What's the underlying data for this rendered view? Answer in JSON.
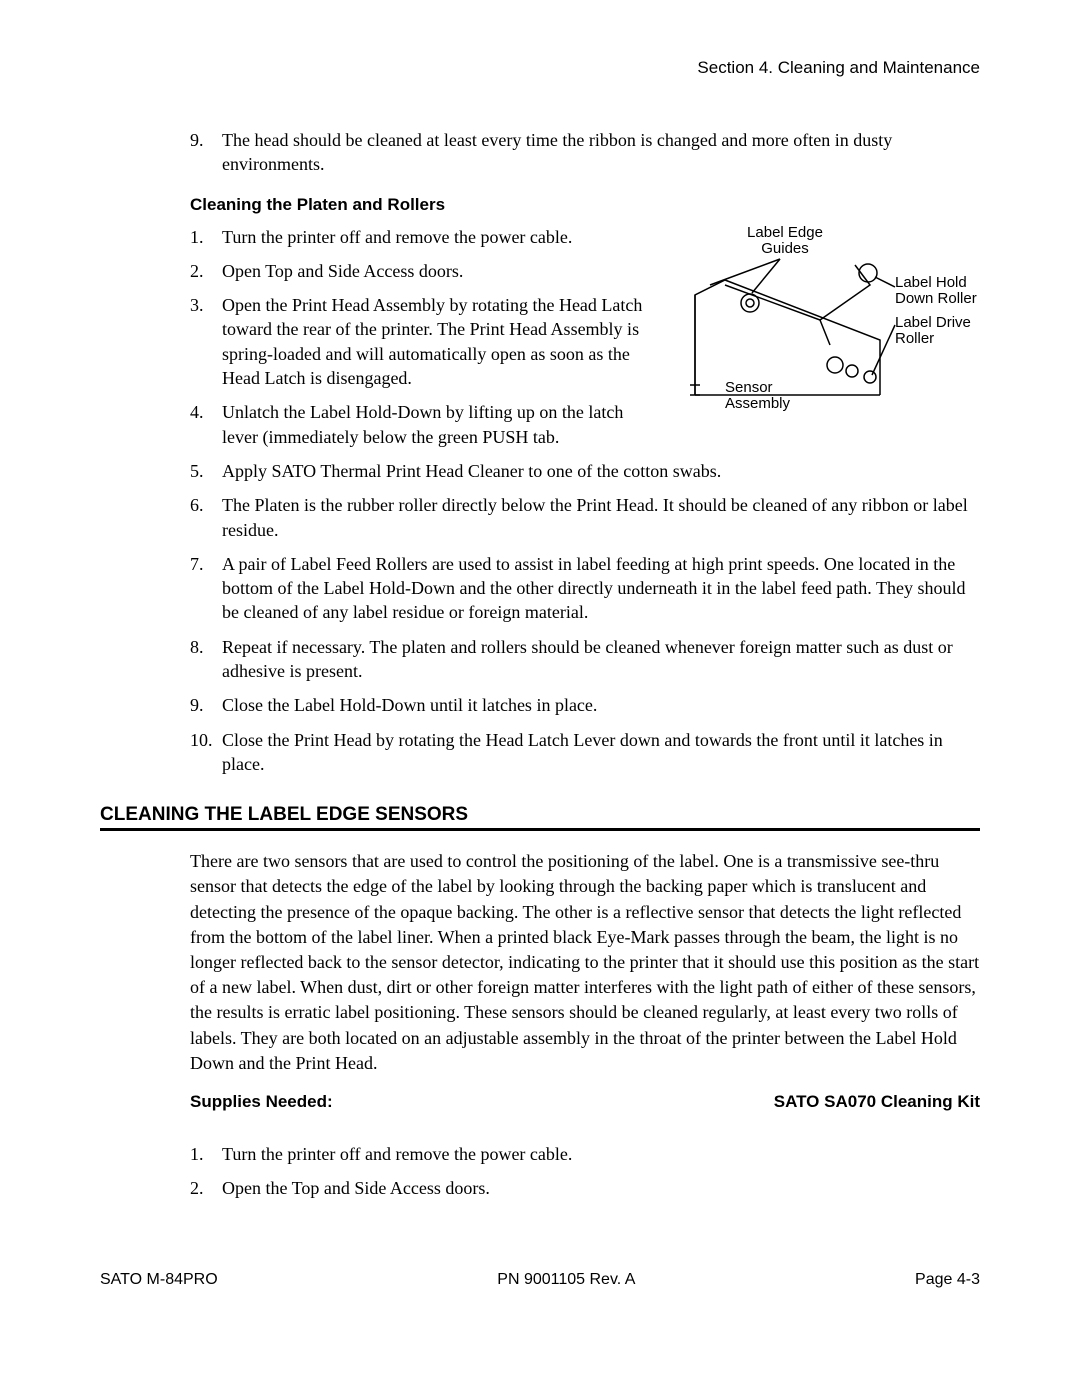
{
  "header": {
    "section_label": "Section 4. Cleaning and Maintenance"
  },
  "top_list": {
    "items": [
      {
        "num": "9.",
        "text": "The head should be cleaned at least every time the ribbon is changed and more often in dusty environments."
      }
    ]
  },
  "subheading1": "Cleaning the Platen and Rollers",
  "platen_list_left": {
    "items": [
      {
        "num": "1.",
        "text": "Turn the printer off and remove the power cable."
      },
      {
        "num": "2.",
        "text": "Open Top and Side Access doors."
      },
      {
        "num": "3.",
        "text": "Open the Print Head Assembly by rotating the Head Latch toward the rear of the printer. The Print Head Assembly is spring-loaded and will automatically open as soon as the Head Latch is disengaged."
      },
      {
        "num": "4.",
        "text": "Unlatch the Label Hold-Down by lifting up on the latch lever (immediately below the green PUSH tab."
      }
    ]
  },
  "diagram_labels": {
    "guides": "Label Edge\nGuides",
    "hold_roller": "Label Hold\nDown Roller",
    "drive_roller": "Label Drive\nRoller",
    "sensor": "Sensor\nAssembly"
  },
  "platen_list_full": {
    "items": [
      {
        "num": "5.",
        "text": "Apply SATO Thermal Print Head Cleaner to one of the cotton swabs."
      },
      {
        "num": "6.",
        "text": "The Platen is the rubber roller directly below the Print Head. It should be cleaned of any ribbon or label residue."
      },
      {
        "num": "7.",
        "text": "A pair of Label Feed Rollers are used to assist in label feeding at high print speeds. One located in the bottom of the Label Hold-Down and the other directly underneath it in the label feed path. They should be cleaned of any label residue or foreign material."
      },
      {
        "num": "8.",
        "text": "Repeat if necessary. The platen and rollers should be cleaned whenever foreign matter such as dust or adhesive is present."
      },
      {
        "num": "9.",
        "text": "Close the Label Hold-Down until it latches in place."
      },
      {
        "num": "10.",
        "text": "Close the Print Head by rotating the Head Latch Lever down and towards the front until it latches in place."
      }
    ]
  },
  "section2": {
    "title": "CLEANING THE LABEL EDGE SENSORS",
    "paragraph": "There are two sensors that are used to control the positioning of the label. One is a transmissive see-thru sensor that detects the edge of the label by looking through the backing paper which is translucent and detecting the presence of the opaque backing. The other is a reflective sensor that detects the light reflected from the bottom of the label liner. When a printed black Eye-Mark passes through the beam, the light is no longer reflected back to the sensor detector, indicating to the printer that it should use this position as the start of a new label. When dust, dirt or other foreign matter interferes with the light path of either of these sensors, the results is erratic label positioning. These sensors should be cleaned regularly, at least every two rolls of labels. They are both located on an adjustable assembly in the throat of the printer between the Label Hold Down and the Print Head."
  },
  "supplies": {
    "label": "Supplies Needed:",
    "value": "SATO SA070 Cleaning Kit"
  },
  "sensor_steps": {
    "items": [
      {
        "num": "1.",
        "text": "Turn the printer off and remove the power cable."
      },
      {
        "num": "2.",
        "text": "Open the Top and Side Access doors."
      }
    ]
  },
  "footer": {
    "left": "SATO M-84PRO",
    "center": "PN 9001105 Rev. A",
    "right": "Page 4-3"
  },
  "colors": {
    "text": "#000000",
    "background": "#ffffff",
    "rule": "#000000"
  }
}
